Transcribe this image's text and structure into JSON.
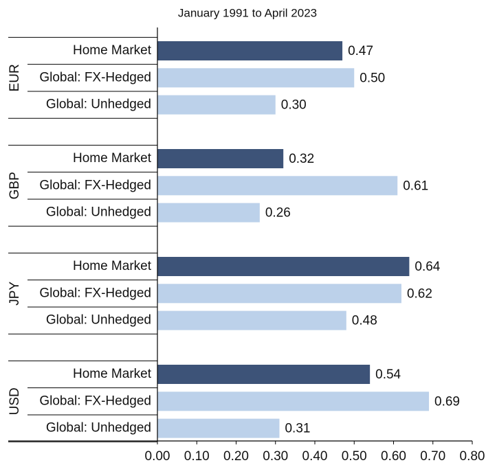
{
  "chart_data": {
    "type": "grouped-hbar",
    "title": "January 1991 to April 2023",
    "categories": [
      "Home Market",
      "Global: FX-Hedged",
      "Global: Unhedged"
    ],
    "colors": [
      "#3d5378",
      "#bcd1ea",
      "#bcd1ea"
    ],
    "groups": [
      {
        "name": "EUR",
        "values": [
          0.47,
          0.5,
          0.3
        ],
        "value_labels": [
          "0.47",
          "0.50",
          "0.30"
        ]
      },
      {
        "name": "GBP",
        "values": [
          0.32,
          0.61,
          0.26
        ],
        "value_labels": [
          "0.32",
          "0.61",
          "0.26"
        ]
      },
      {
        "name": "JPY",
        "values": [
          0.64,
          0.62,
          0.48
        ],
        "value_labels": [
          "0.64",
          "0.62",
          "0.48"
        ]
      },
      {
        "name": "USD",
        "values": [
          0.54,
          0.69,
          0.31
        ],
        "value_labels": [
          "0.54",
          "0.69",
          "0.31"
        ]
      }
    ],
    "xlim": [
      0,
      0.8
    ],
    "xticks": [
      {
        "value": 0,
        "label": "0.00"
      },
      {
        "value": 0.1,
        "label": "0.10"
      },
      {
        "value": 0.2,
        "label": "0.20"
      },
      {
        "value": 0.3,
        "label": "0.30"
      },
      {
        "value": 0.4,
        "label": "0.40"
      },
      {
        "value": 0.5,
        "label": "0.50"
      },
      {
        "value": 0.6,
        "label": "0.60"
      },
      {
        "value": 0.7,
        "label": "0.70"
      },
      {
        "value": 0.8,
        "label": "0.80"
      }
    ]
  }
}
